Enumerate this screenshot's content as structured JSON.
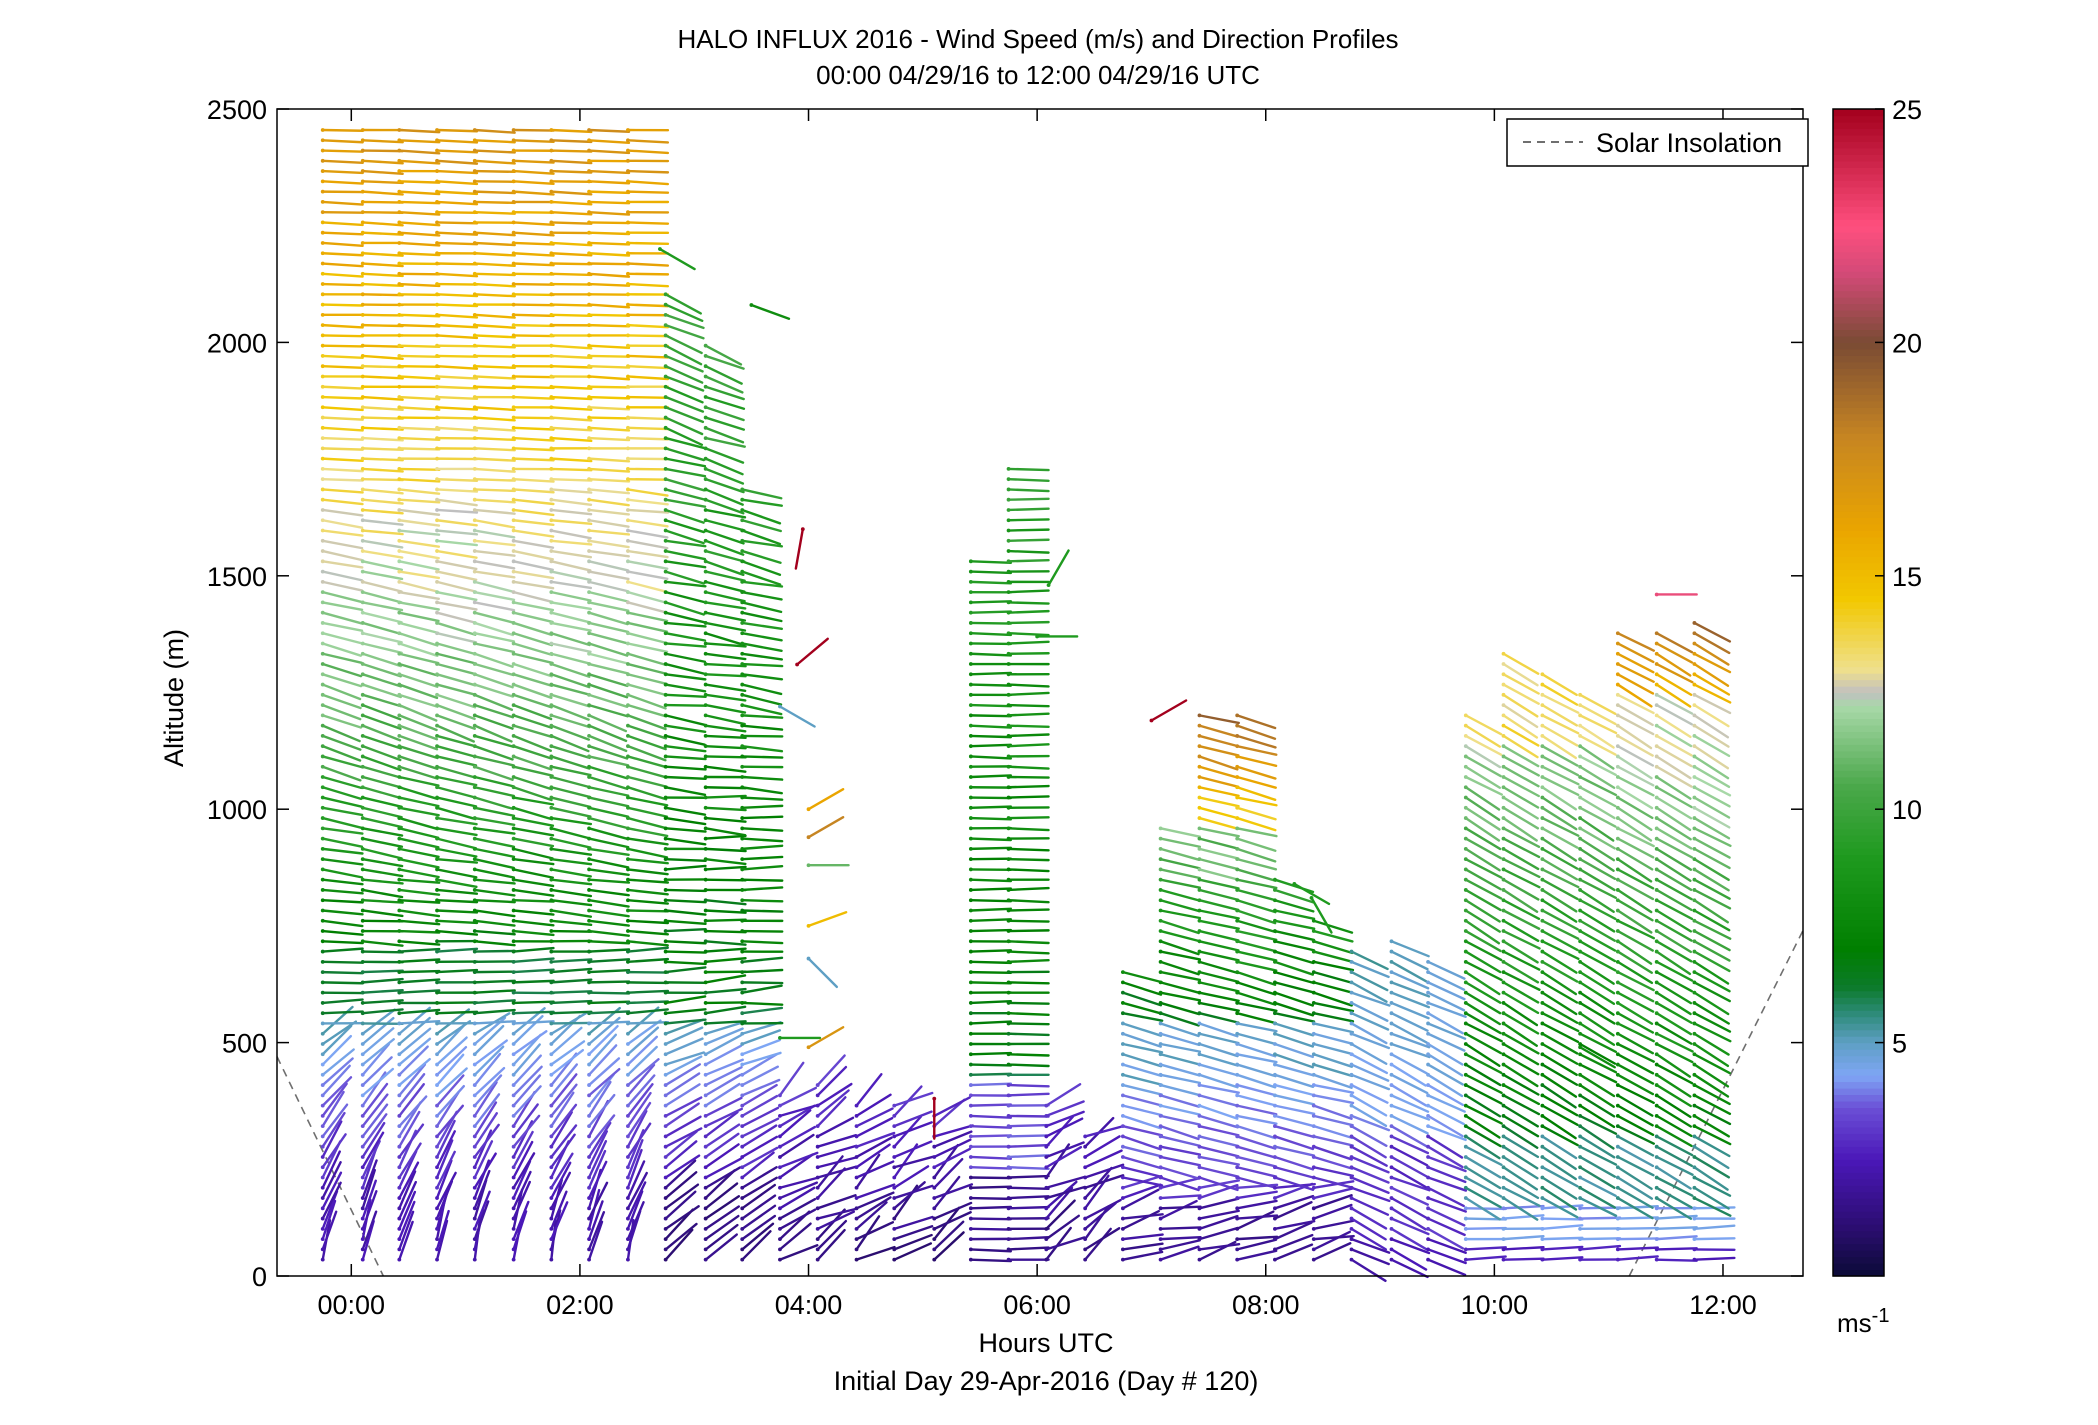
{
  "chart_data": {
    "type": "wind-barb-profile",
    "title": "HALO INFLUX 2016 - Wind Speed (m/s) and Direction Profiles",
    "subtitle": "00:00 04/29/16 to 12:00 04/29/16  UTC",
    "xlabel": "Hours UTC",
    "xlabel2": "Initial Day 29-Apr-2016 (Day # 120)",
    "ylabel": "Altitude (m)",
    "xlim_hours": [
      -0.65,
      12.7
    ],
    "ylim": [
      0,
      2500
    ],
    "x_ticks": [
      {
        "value": 0,
        "label": "00:00"
      },
      {
        "value": 2,
        "label": "02:00"
      },
      {
        "value": 4,
        "label": "04:00"
      },
      {
        "value": 6,
        "label": "06:00"
      },
      {
        "value": 8,
        "label": "08:00"
      },
      {
        "value": 10,
        "label": "10:00"
      },
      {
        "value": 12,
        "label": "12:00"
      }
    ],
    "y_ticks": [
      {
        "value": 0,
        "label": "0"
      },
      {
        "value": 500,
        "label": "500"
      },
      {
        "value": 1000,
        "label": "1000"
      },
      {
        "value": 1500,
        "label": "1500"
      },
      {
        "value": 2000,
        "label": "2000"
      },
      {
        "value": 2500,
        "label": "2500"
      }
    ],
    "legend": {
      "label": "Solar Insolation",
      "position": "top-right",
      "style": "dashed",
      "color": "#6f6f6f"
    },
    "colorbar": {
      "range": [
        0,
        25
      ],
      "ticks": [
        {
          "value": 5,
          "label": "5"
        },
        {
          "value": 10,
          "label": "10"
        },
        {
          "value": 15,
          "label": "15"
        },
        {
          "value": 20,
          "label": "20"
        },
        {
          "value": 25,
          "label": "25"
        }
      ],
      "unit": "ms",
      "unit_exp": "-1",
      "stops": [
        {
          "v": 0,
          "c": "#0b0b36"
        },
        {
          "v": 1,
          "c": "#2a0d6e"
        },
        {
          "v": 2.5,
          "c": "#4b18b8"
        },
        {
          "v": 3.6,
          "c": "#6b4fd6"
        },
        {
          "v": 4.3,
          "c": "#7fa6f5"
        },
        {
          "v": 5,
          "c": "#5e9fc4"
        },
        {
          "v": 5.6,
          "c": "#2f8c7c"
        },
        {
          "v": 6.2,
          "c": "#0c7a2a"
        },
        {
          "v": 7,
          "c": "#007f00"
        },
        {
          "v": 9,
          "c": "#1f9a1f"
        },
        {
          "v": 10.5,
          "c": "#4aa84a"
        },
        {
          "v": 12.2,
          "c": "#a8d8a8"
        },
        {
          "v": 12.5,
          "c": "#c0c0c0"
        },
        {
          "v": 13,
          "c": "#efe08c"
        },
        {
          "v": 14.5,
          "c": "#f2c800"
        },
        {
          "v": 16,
          "c": "#eaa500"
        },
        {
          "v": 18,
          "c": "#c68522"
        },
        {
          "v": 20,
          "c": "#7a4b34"
        },
        {
          "v": 21.5,
          "c": "#d44a78"
        },
        {
          "v": 22.5,
          "c": "#ff4f7e"
        },
        {
          "v": 25,
          "c": "#a3001d"
        }
      ]
    },
    "profiles": [
      {
        "t": -0.25,
        "top": 2470,
        "kind": "A"
      },
      {
        "t": 0.1,
        "top": 2470,
        "kind": "A"
      },
      {
        "t": 0.42,
        "top": 2470,
        "kind": "A"
      },
      {
        "t": 0.75,
        "top": 2470,
        "kind": "A"
      },
      {
        "t": 1.08,
        "top": 2470,
        "kind": "A"
      },
      {
        "t": 1.42,
        "top": 2470,
        "kind": "A"
      },
      {
        "t": 1.75,
        "top": 2470,
        "kind": "A"
      },
      {
        "t": 2.08,
        "top": 2470,
        "kind": "A"
      },
      {
        "t": 2.42,
        "top": 2470,
        "kind": "A"
      },
      {
        "t": 2.75,
        "top": 2120,
        "kind": "B"
      },
      {
        "t": 3.1,
        "top": 2000,
        "kind": "B"
      },
      {
        "t": 3.42,
        "top": 1700,
        "kind": "B"
      },
      {
        "t": 3.75,
        "top": 400,
        "kind": "C"
      },
      {
        "t": 4.08,
        "top": 420,
        "kind": "C"
      },
      {
        "t": 4.42,
        "top": 380,
        "kind": "C"
      },
      {
        "t": 4.75,
        "top": 380,
        "kind": "C"
      },
      {
        "t": 5.1,
        "top": 350,
        "kind": "C"
      },
      {
        "t": 5.42,
        "top": 1550,
        "kind": "D"
      },
      {
        "t": 5.75,
        "top": 1750,
        "kind": "D"
      },
      {
        "t": 6.08,
        "top": 380,
        "kind": "C"
      },
      {
        "t": 6.42,
        "top": 300,
        "kind": "C"
      },
      {
        "t": 6.75,
        "top": 670,
        "kind": "E"
      },
      {
        "t": 7.08,
        "top": 980,
        "kind": "E"
      },
      {
        "t": 7.42,
        "top": 1210,
        "kind": "F"
      },
      {
        "t": 7.75,
        "top": 1210,
        "kind": "F"
      },
      {
        "t": 8.08,
        "top": 850,
        "kind": "E"
      },
      {
        "t": 8.42,
        "top": 780,
        "kind": "E"
      },
      {
        "t": 8.75,
        "top": 700,
        "kind": "G"
      },
      {
        "t": 9.1,
        "top": 720,
        "kind": "G"
      },
      {
        "t": 9.42,
        "top": 680,
        "kind": "G"
      },
      {
        "t": 9.75,
        "top": 1220,
        "kind": "H"
      },
      {
        "t": 10.08,
        "top": 1350,
        "kind": "H"
      },
      {
        "t": 10.42,
        "top": 1300,
        "kind": "H"
      },
      {
        "t": 10.75,
        "top": 1250,
        "kind": "H"
      },
      {
        "t": 11.08,
        "top": 1390,
        "kind": "I"
      },
      {
        "t": 11.42,
        "top": 1380,
        "kind": "I"
      },
      {
        "t": 11.75,
        "top": 1420,
        "kind": "I"
      }
    ],
    "isolated_barbs": [
      {
        "t": 2.7,
        "alt": 2200,
        "speed": 9,
        "dir": 300
      },
      {
        "t": 3.5,
        "alt": 2080,
        "speed": 8,
        "dir": 290
      },
      {
        "t": 3.95,
        "alt": 1600,
        "speed": 25,
        "dir": 10
      },
      {
        "t": 3.9,
        "alt": 1310,
        "speed": 25,
        "dir": 230
      },
      {
        "t": 3.75,
        "alt": 1220,
        "speed": 5,
        "dir": 300
      },
      {
        "t": 4.0,
        "alt": 1000,
        "speed": 16,
        "dir": 240
      },
      {
        "t": 4.0,
        "alt": 940,
        "speed": 18,
        "dir": 240
      },
      {
        "t": 4.0,
        "alt": 880,
        "speed": 11,
        "dir": 270
      },
      {
        "t": 4.0,
        "alt": 750,
        "speed": 15,
        "dir": 250
      },
      {
        "t": 4.0,
        "alt": 680,
        "speed": 5,
        "dir": 315
      },
      {
        "t": 3.75,
        "alt": 510,
        "speed": 9,
        "dir": 270
      },
      {
        "t": 4.0,
        "alt": 490,
        "speed": 17,
        "dir": 240
      },
      {
        "t": 5.1,
        "alt": 380,
        "speed": 25,
        "dir": 0
      },
      {
        "t": 6.1,
        "alt": 1480,
        "speed": 9,
        "dir": 210
      },
      {
        "t": 6.0,
        "alt": 1370,
        "speed": 9,
        "dir": 270
      },
      {
        "t": 7.0,
        "alt": 1190,
        "speed": 25,
        "dir": 240
      },
      {
        "t": 8.25,
        "alt": 840,
        "speed": 9,
        "dir": 300
      },
      {
        "t": 8.4,
        "alt": 810,
        "speed": 9,
        "dir": 330
      },
      {
        "t": 10.75,
        "alt": 490,
        "speed": 8,
        "dir": 300
      },
      {
        "t": 11.42,
        "alt": 1460,
        "speed": 22,
        "dir": 270
      }
    ],
    "solar_insolation": [
      {
        "x": -0.65,
        "y": 470
      },
      {
        "x": 0.28,
        "y": 0
      },
      {
        "x": 11.18,
        "y": 0
      },
      {
        "x": 12.7,
        "y": 740
      }
    ]
  }
}
